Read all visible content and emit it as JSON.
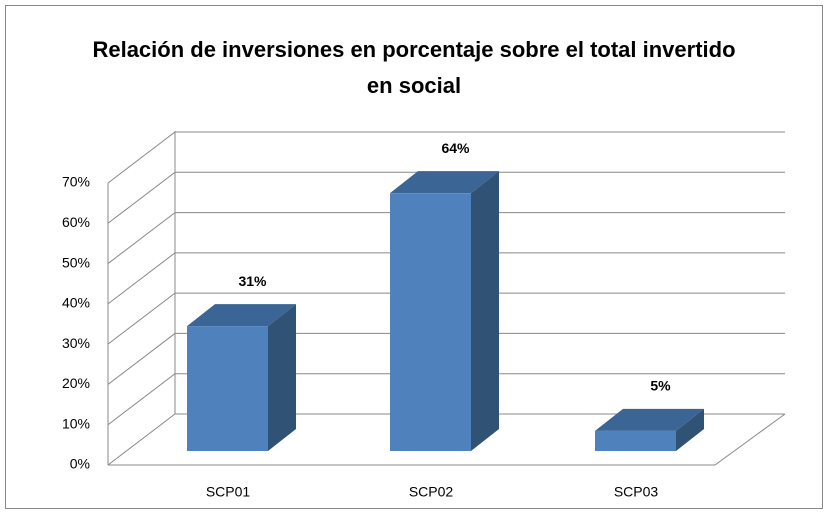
{
  "chart_data": {
    "type": "bar3d",
    "title": "Relación de inversiones en porcentaje sobre el total invertido en social",
    "categories": [
      "SCP01",
      "SCP02",
      "SCP03"
    ],
    "values": [
      31,
      64,
      5
    ],
    "value_labels": [
      "31%",
      "64%",
      "5%"
    ],
    "color": "#4f81bd",
    "ylim": [
      0,
      70
    ],
    "yticks": [
      {
        "value": 0,
        "label": "0%"
      },
      {
        "value": 10,
        "label": "10%"
      },
      {
        "value": 20,
        "label": "20%"
      },
      {
        "value": 30,
        "label": "30%"
      },
      {
        "value": 40,
        "label": "40%"
      },
      {
        "value": 50,
        "label": "50%"
      },
      {
        "value": 60,
        "label": "60%"
      },
      {
        "value": 70,
        "label": "70%"
      }
    ],
    "grid": true
  }
}
